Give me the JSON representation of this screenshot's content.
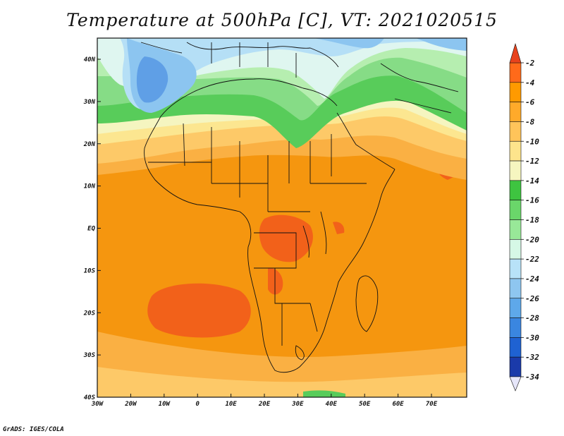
{
  "title": "Temperature at 500hPa [C], VT: 2021020515",
  "credit": "GrADS: IGES/COLA",
  "map": {
    "lon_ticks": [
      "30W",
      "20W",
      "10W",
      "0",
      "10E",
      "20E",
      "30E",
      "40E",
      "50E",
      "60E",
      "70E"
    ],
    "lat_ticks": [
      "40S",
      "30S",
      "20S",
      "10S",
      "EQ",
      "10N",
      "20N",
      "30N",
      "40N"
    ]
  },
  "colorbar": {
    "labels": [
      "-2",
      "-4",
      "-6",
      "-8",
      "-10",
      "-12",
      "-14",
      "-16",
      "-18",
      "-20",
      "-22",
      "-24",
      "-26",
      "-28",
      "-30",
      "-32",
      "-34"
    ],
    "colors": {
      "top_arrow": "#e8421c",
      "bottom_arrow": "#e6e6fa",
      "bands": [
        "#ff6a1a",
        "#ff9a00",
        "#ffaa2a",
        "#ffc45a",
        "#fde48c",
        "#f6f6c0",
        "#3ec440",
        "#6ad66a",
        "#98e898",
        "#d6f8e6",
        "#b8e2f8",
        "#8ec6f0",
        "#5ea8ea",
        "#3a86e0",
        "#1f62d2",
        "#1a3aaa",
        "#14146a"
      ]
    },
    "map_colors": {
      "-2": "#f2611a",
      "-4": "#f5960f",
      "-6": "#fab043",
      "-8": "#fdc968",
      "-10": "#fce690",
      "-12": "#f5f5c0",
      "-14": "#58cc5a",
      "-16": "#86dc86",
      "-18": "#b6eeb0",
      "-20": "#dff6f0",
      "-22": "#b5dff6",
      "-24": "#8cc5f0",
      "-26": "#5f9fe6"
    }
  }
}
